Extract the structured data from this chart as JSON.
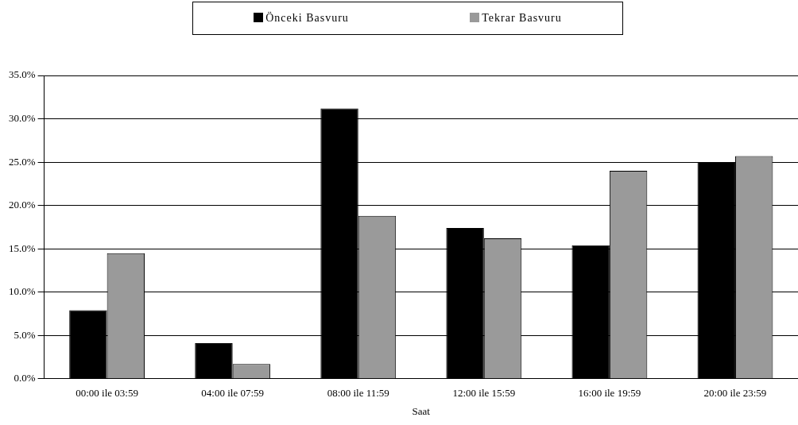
{
  "chart_data": {
    "type": "bar",
    "xlabel": "Saat",
    "categories": [
      "00:00 ile 03:59",
      "04:00 ile 07:59",
      "08:00 ile 11:59",
      "12:00 ile 15:59",
      "16:00 ile 19:59",
      "20:00 ile 23:59"
    ],
    "series": [
      {
        "name": "Önceki Basvuru",
        "color": "#000000",
        "values": [
          7.9,
          4.1,
          31.2,
          17.4,
          15.4,
          25.0
        ]
      },
      {
        "name": "Tekrar Basvuru",
        "color": "#9a9a9a",
        "values": [
          14.5,
          1.7,
          18.8,
          16.2,
          24.0,
          25.7
        ]
      }
    ],
    "ylim": [
      0,
      35
    ],
    "yticks": [
      {
        "value": 0,
        "label": "0.0%"
      },
      {
        "value": 5,
        "label": "5.0%"
      },
      {
        "value": 10,
        "label": "10.0%"
      },
      {
        "value": 15,
        "label": "15.0%"
      },
      {
        "value": 20,
        "label": "20.0%"
      },
      {
        "value": 25,
        "label": "25.0%"
      },
      {
        "value": 30,
        "label": "30.0%"
      },
      {
        "value": 35,
        "label": "35.0%"
      }
    ],
    "grid": "y",
    "legend": "top"
  }
}
